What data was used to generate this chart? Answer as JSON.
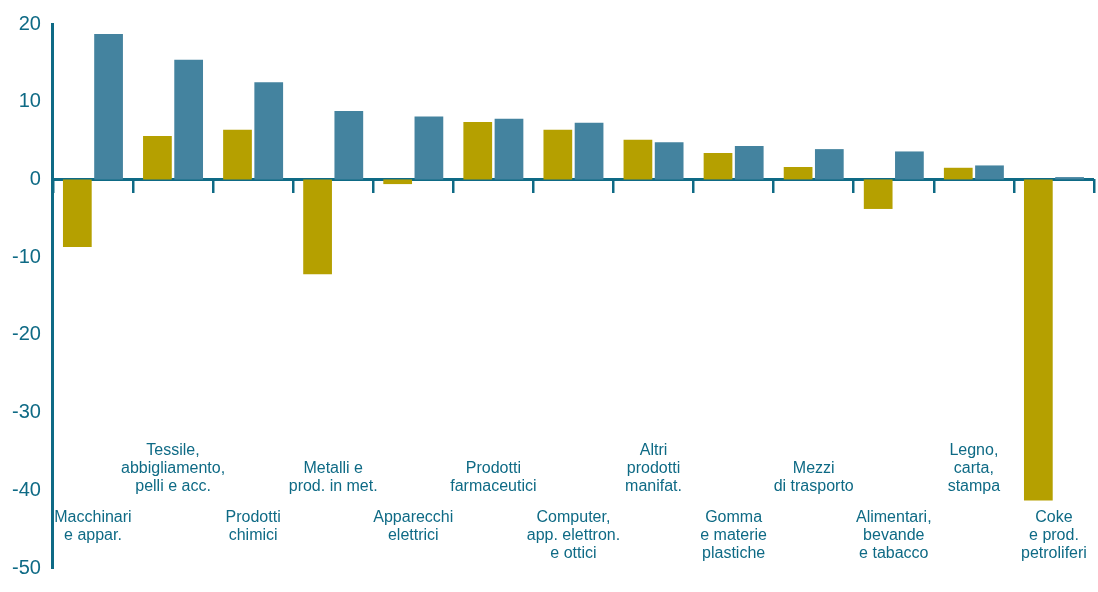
{
  "chart_data": {
    "type": "bar",
    "categories": [
      "Macchinari\ne appar.",
      "Tessile,\nabbigliamento,\npelli e acc.",
      "Prodotti\nchimici",
      "Metalli e\nprod. in met.",
      "Apparecchi\nelettrici",
      "Prodotti\nfarmaceutici",
      "Computer,\napp. elettron.\ne ottici",
      "Altri\nprodotti\nmanifat.",
      "Gomma\ne materie\nplastiche",
      "Mezzi\ndi trasporto",
      "Alimentari,\nbevande\ne tabacco",
      "Legno,\ncarta,\nstampa",
      "Coke\ne prod.\npetroliferi"
    ],
    "series": [
      {
        "color": "#b5a000",
        "values": [
          -8.7,
          5.6,
          6.4,
          -12.2,
          -0.6,
          7.4,
          6.4,
          5.1,
          3.4,
          1.6,
          -3.8,
          1.5,
          -41.3
        ]
      },
      {
        "color": "#44839f",
        "values": [
          18.7,
          15.4,
          12.5,
          8.8,
          8.1,
          7.8,
          7.3,
          4.8,
          4.3,
          3.9,
          3.6,
          1.8,
          0.3
        ]
      }
    ],
    "ref_lines": [
      {
        "axis": "y",
        "value": 0,
        "color": "#0e6a85"
      }
    ],
    "ylim": [
      -50,
      20
    ],
    "yticks": [
      -50,
      -40,
      -30,
      -20,
      -10,
      0,
      10,
      20
    ],
    "grid": false,
    "legend": false
  }
}
